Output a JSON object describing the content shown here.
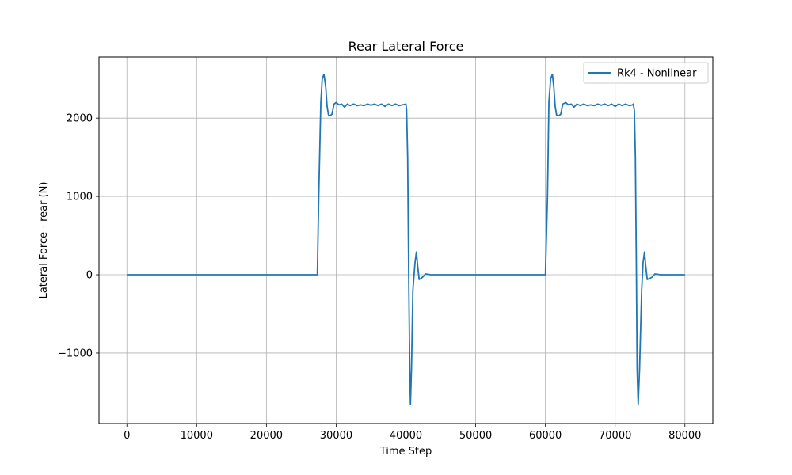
{
  "chart_data": {
    "type": "line",
    "title": "Rear Lateral Force",
    "xlabel": "Time Step",
    "ylabel": "Lateral Force - rear (N)",
    "xlim": [
      -4000,
      84000
    ],
    "ylim": [
      -1900,
      2780
    ],
    "xticks": [
      0,
      10000,
      20000,
      30000,
      40000,
      50000,
      60000,
      70000,
      80000
    ],
    "yticks": [
      -1000,
      0,
      1000,
      2000
    ],
    "ytick_labels": [
      "−1000",
      "0",
      "1000",
      "2000"
    ],
    "grid": true,
    "legend_position": "top-right",
    "series": [
      {
        "name": "Rk4 - Nonlinear",
        "color": "#1f77b4",
        "x": [
          0,
          10000,
          20000,
          27300,
          27500,
          27800,
          28000,
          28250,
          28500,
          28700,
          28900,
          29100,
          29400,
          29700,
          30000,
          30400,
          30800,
          31200,
          31600,
          32000,
          32500,
          33000,
          33500,
          34000,
          34500,
          35000,
          35500,
          36000,
          36500,
          37000,
          37500,
          38000,
          38500,
          39000,
          39500,
          40000,
          40100,
          40250,
          40400,
          40550,
          40650,
          40800,
          41000,
          41300,
          41500,
          41700,
          41900,
          42100,
          42400,
          42800,
          43200,
          43600,
          44000,
          45000,
          50000,
          55000,
          59800,
          60000,
          60300,
          60500,
          60750,
          61000,
          61200,
          61400,
          61600,
          61900,
          62200,
          62500,
          62900,
          63300,
          63700,
          64100,
          64500,
          65000,
          65500,
          66000,
          66500,
          67000,
          67500,
          68000,
          68500,
          69000,
          69500,
          70000,
          70500,
          71000,
          71500,
          72000,
          72500,
          72600,
          72750,
          72900,
          73050,
          73150,
          73300,
          73500,
          73800,
          74000,
          74200,
          74400,
          74600,
          74900,
          75300,
          75700,
          76100,
          76500,
          77000,
          78000,
          80000
        ],
        "y": [
          0,
          0,
          0,
          0,
          1000,
          2200,
          2500,
          2560,
          2400,
          2150,
          2040,
          2030,
          2050,
          2180,
          2200,
          2170,
          2180,
          2140,
          2180,
          2160,
          2180,
          2160,
          2170,
          2160,
          2180,
          2165,
          2180,
          2160,
          2180,
          2150,
          2180,
          2160,
          2180,
          2160,
          2170,
          2180,
          2100,
          1500,
          0,
          -1200,
          -1650,
          -1200,
          -200,
          150,
          290,
          100,
          -60,
          -50,
          -30,
          10,
          5,
          0,
          0,
          0,
          0,
          0,
          0,
          0,
          1000,
          2200,
          2500,
          2560,
          2400,
          2150,
          2040,
          2030,
          2050,
          2180,
          2200,
          2170,
          2180,
          2140,
          2180,
          2160,
          2180,
          2160,
          2170,
          2160,
          2180,
          2165,
          2180,
          2160,
          2180,
          2150,
          2180,
          2160,
          2180,
          2160,
          2170,
          2180,
          2100,
          1500,
          0,
          -1200,
          -1650,
          -1200,
          -200,
          150,
          290,
          100,
          -60,
          -50,
          -30,
          10,
          5,
          0,
          0,
          0,
          0
        ]
      }
    ]
  }
}
